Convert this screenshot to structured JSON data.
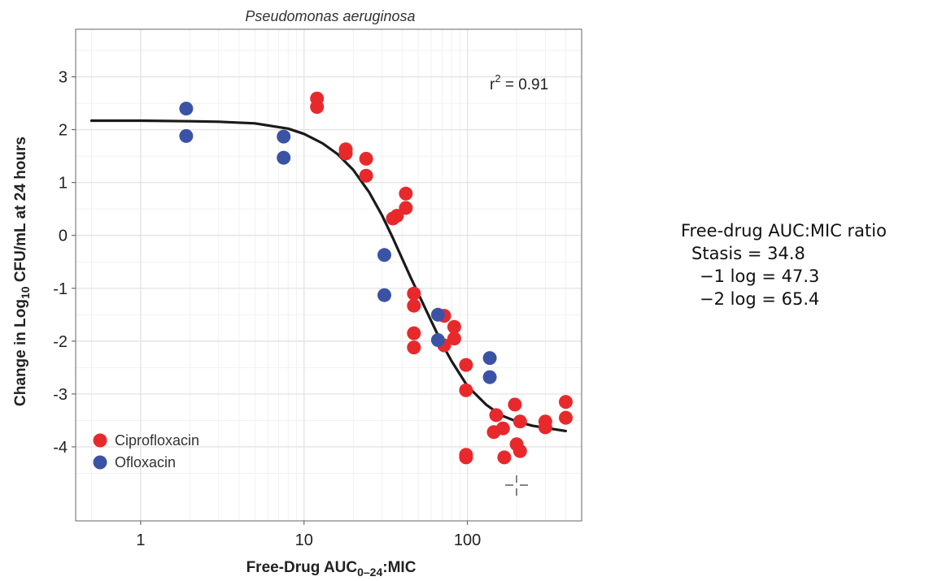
{
  "chart_data": {
    "type": "scatter",
    "title": "Pseudomonas aeruginosa",
    "xlabel": {
      "main": "Free-Drug AUC",
      "sub": "0–24",
      "tail": ":MIC"
    },
    "ylabel": {
      "main": "Change in Log",
      "sub": "10",
      "tail": " CFU/mL at 24 hours"
    },
    "x_scale": "log",
    "xlim": [
      0.4,
      500
    ],
    "ylim": [
      -5.4,
      3.9
    ],
    "x_ticks": [
      1,
      10,
      100
    ],
    "x_tick_labels": [
      "1",
      "10",
      "100"
    ],
    "y_ticks": [
      3,
      2,
      1,
      0,
      -1,
      -2,
      -3,
      -4
    ],
    "y_tick_labels": [
      "3",
      "2",
      "1",
      "0",
      "-1",
      "-2",
      "-3",
      "-4"
    ],
    "grid": true,
    "legend_position": "bottom-left",
    "annotation": {
      "base": "r",
      "sup": "2",
      "tail": " = 0.91"
    },
    "fit_curve": {
      "model": "sigmoid Emax",
      "x": [
        0.5,
        1,
        2,
        3,
        5,
        8,
        10,
        13,
        16,
        20,
        25,
        30,
        35,
        40,
        45,
        50,
        60,
        70,
        80,
        100,
        130,
        160,
        200,
        250,
        300,
        400
      ],
      "y": [
        2.17,
        2.17,
        2.16,
        2.15,
        2.12,
        2.02,
        1.92,
        1.74,
        1.54,
        1.24,
        0.82,
        0.38,
        -0.05,
        -0.45,
        -0.8,
        -1.1,
        -1.62,
        -2.05,
        -2.38,
        -2.85,
        -3.2,
        -3.4,
        -3.52,
        -3.6,
        -3.64,
        -3.7
      ]
    },
    "series": [
      {
        "name": "Ciprofloxacin",
        "color": "#e8292c",
        "points": [
          {
            "x": 12,
            "y": 2.59
          },
          {
            "x": 12,
            "y": 2.43
          },
          {
            "x": 18,
            "y": 1.63
          },
          {
            "x": 18,
            "y": 1.55
          },
          {
            "x": 24,
            "y": 1.45
          },
          {
            "x": 24,
            "y": 1.13
          },
          {
            "x": 35,
            "y": 0.32
          },
          {
            "x": 37,
            "y": 0.37
          },
          {
            "x": 42,
            "y": 0.79
          },
          {
            "x": 42,
            "y": 0.52
          },
          {
            "x": 47,
            "y": -1.1
          },
          {
            "x": 47,
            "y": -1.33
          },
          {
            "x": 47,
            "y": -1.85
          },
          {
            "x": 47,
            "y": -2.12
          },
          {
            "x": 72,
            "y": -1.52
          },
          {
            "x": 72,
            "y": -2.08
          },
          {
            "x": 83,
            "y": -1.73
          },
          {
            "x": 83,
            "y": -1.95
          },
          {
            "x": 98,
            "y": -2.45
          },
          {
            "x": 98,
            "y": -2.93
          },
          {
            "x": 98,
            "y": -4.15
          },
          {
            "x": 98,
            "y": -4.2
          },
          {
            "x": 145,
            "y": -3.72
          },
          {
            "x": 150,
            "y": -3.4
          },
          {
            "x": 165,
            "y": -3.65
          },
          {
            "x": 168,
            "y": -4.2
          },
          {
            "x": 195,
            "y": -3.2
          },
          {
            "x": 200,
            "y": -3.95
          },
          {
            "x": 210,
            "y": -4.08
          },
          {
            "x": 210,
            "y": -3.52
          },
          {
            "x": 300,
            "y": -3.52
          },
          {
            "x": 300,
            "y": -3.63
          },
          {
            "x": 400,
            "y": -3.15
          },
          {
            "x": 400,
            "y": -3.45
          }
        ]
      },
      {
        "name": "Ofloxacin",
        "color": "#3b53a4",
        "points": [
          {
            "x": 1.9,
            "y": 2.4
          },
          {
            "x": 1.9,
            "y": 1.88
          },
          {
            "x": 7.5,
            "y": 1.87
          },
          {
            "x": 7.5,
            "y": 1.47
          },
          {
            "x": 31,
            "y": -0.37
          },
          {
            "x": 31,
            "y": -1.13
          },
          {
            "x": 66,
            "y": -1.5
          },
          {
            "x": 66,
            "y": -1.98
          },
          {
            "x": 137,
            "y": -2.32
          },
          {
            "x": 137,
            "y": -2.68
          }
        ]
      }
    ]
  },
  "side_panel": {
    "heading": "Free-drug AUC:MIC ratio",
    "rows": [
      {
        "label": "Stasis",
        "sep": " = ",
        "value": "34.8"
      },
      {
        "label": "−1 log",
        "sep": " = ",
        "value": "47.3"
      },
      {
        "label": "−2 log",
        "sep": " = ",
        "value": "65.4"
      }
    ]
  },
  "cursor": {
    "icon": "crosshair-cursor-icon"
  }
}
